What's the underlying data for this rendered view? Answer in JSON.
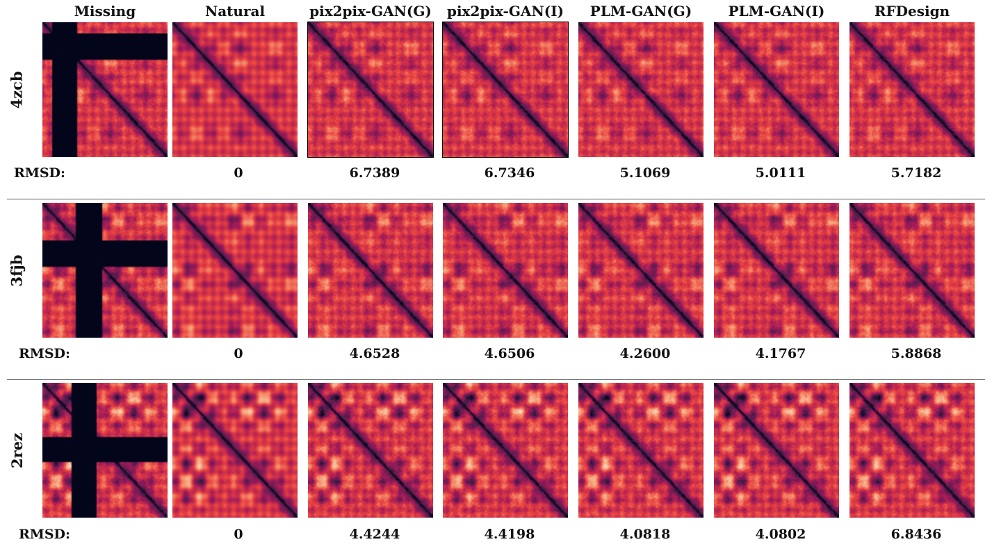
{
  "columns": [
    "Missing",
    "Natural",
    "pix2pix-GAN(G)",
    "pix2pix-GAN(I)",
    "PLM-GAN(G)",
    "PLM-GAN(I)",
    "RFDesign"
  ],
  "rmsd_label": "RMSD:",
  "rows": [
    {
      "pdb_id": "4zcb",
      "rmsd": [
        "0",
        "6.7389",
        "6.7346",
        "5.1069",
        "5.0111",
        "5.7182"
      ]
    },
    {
      "pdb_id": "3fjb",
      "rmsd": [
        "0",
        "4.6528",
        "4.6506",
        "4.2600",
        "4.1767",
        "5.8868"
      ]
    },
    {
      "pdb_id": "2rez",
      "rmsd": [
        "0",
        "4.4244",
        "4.4198",
        "4.0818",
        "4.0802",
        "6.8436"
      ]
    }
  ],
  "colormap": [
    "#03051a",
    "#4c1d4b",
    "#a11a5b",
    "#e83f3f",
    "#f69c73",
    "#faebdd"
  ]
}
